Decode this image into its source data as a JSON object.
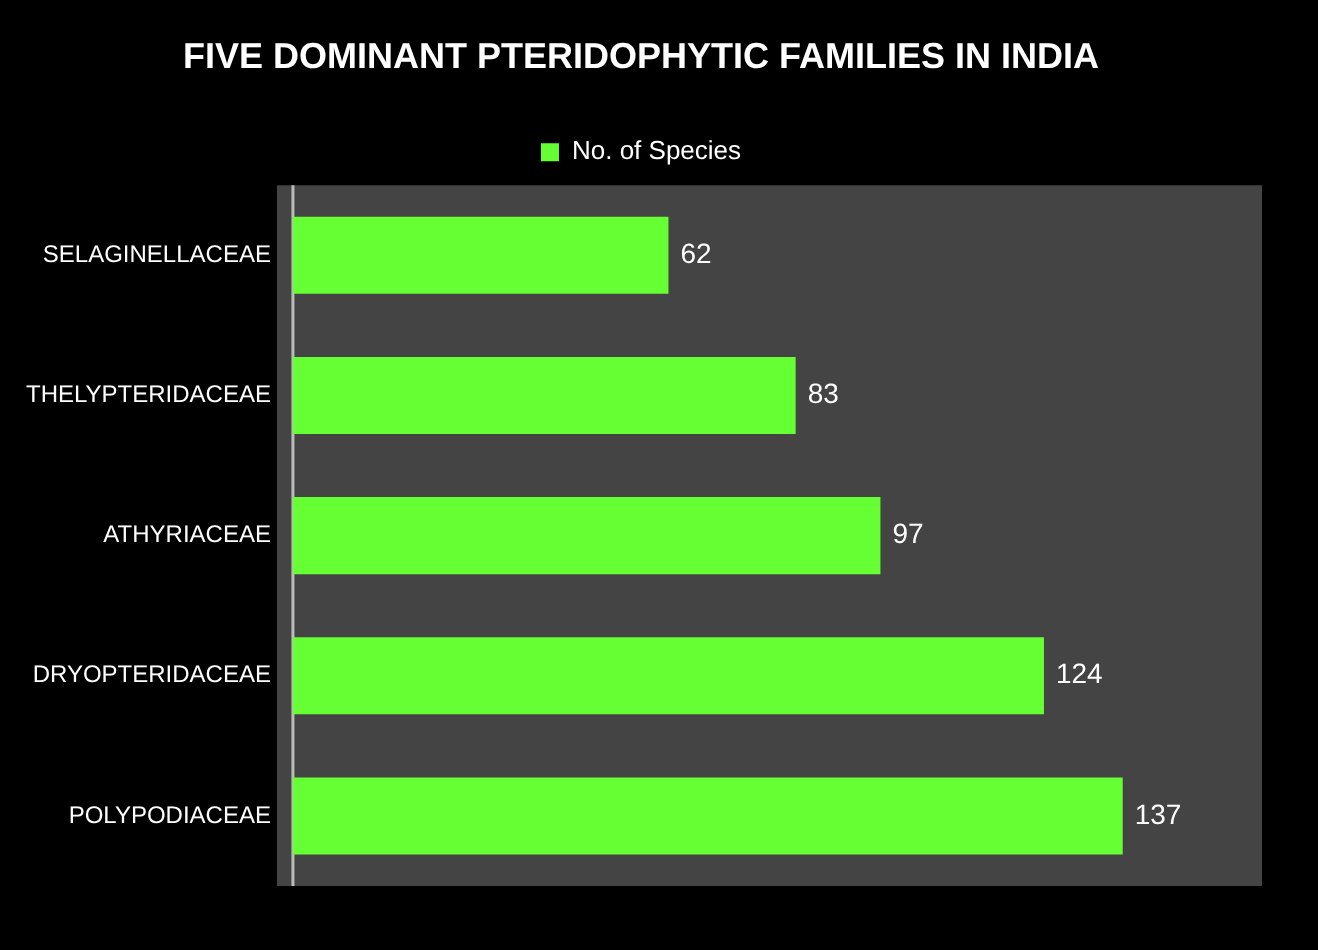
{
  "chart_data": {
    "type": "bar",
    "orientation": "horizontal",
    "title": "FIVE DOMINANT PTERIDOPHYTIC FAMILIES IN INDIA",
    "categories": [
      "SELAGINELLACEAE",
      "THELYPTERIDACEAE",
      "ATHYRIACEAE",
      "DRYOPTERIDACEAE",
      "POLYPODIACEAE"
    ],
    "series": [
      {
        "name": "No. of Species",
        "color": "#66ff33",
        "values": [
          62,
          83,
          97,
          124,
          137
        ]
      }
    ],
    "data_labels": true,
    "legend": "top",
    "grid": false,
    "tick_labels": "y"
  }
}
